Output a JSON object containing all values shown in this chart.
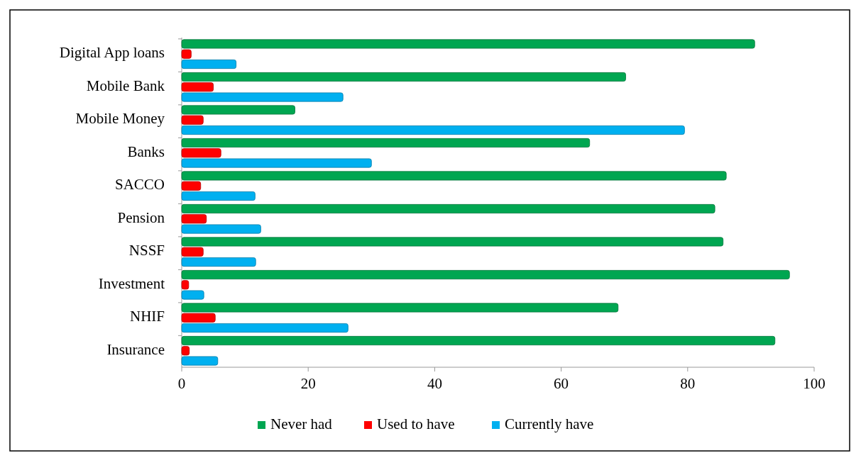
{
  "chart_data": {
    "type": "bar",
    "orientation": "horizontal",
    "categories": [
      "Digital App loans",
      "Mobile Bank",
      "Mobile Money",
      "Banks",
      "SACCO",
      "Pension",
      "NSSF",
      "Investment",
      "NHIF",
      "Insurance"
    ],
    "series": [
      {
        "name": "Never had",
        "color": "#00a651",
        "values": [
          90.6,
          70.2,
          17.9,
          64.5,
          86.1,
          84.3,
          85.6,
          96.1,
          69.0,
          93.8
        ]
      },
      {
        "name": "Used to have",
        "color": "#ff0000",
        "values": [
          1.5,
          5.0,
          3.4,
          6.2,
          3.0,
          3.9,
          3.4,
          1.1,
          5.3,
          1.2
        ]
      },
      {
        "name": "Currently have",
        "color": "#00b0f0",
        "values": [
          8.6,
          25.5,
          79.5,
          30.0,
          11.6,
          12.5,
          11.7,
          3.5,
          26.3,
          5.7
        ]
      }
    ],
    "xlim": [
      0,
      100
    ],
    "xticks": [
      0,
      20,
      40,
      60,
      80,
      100
    ],
    "grid": false,
    "legend": "bottom"
  }
}
